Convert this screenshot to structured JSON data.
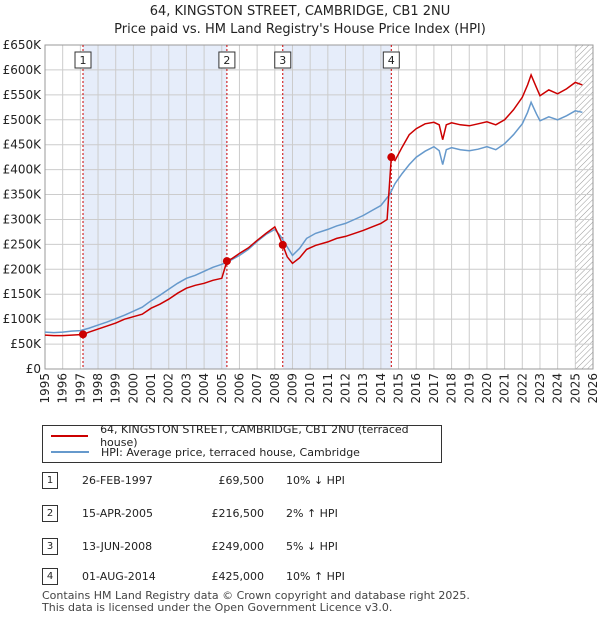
{
  "title_line1": "64, KINGSTON STREET, CAMBRIDGE, CB1 2NU",
  "title_line2": "Price paid vs. HM Land Registry's House Price Index (HPI)",
  "colors": {
    "property": "#cc0000",
    "hpi": "#6699cc",
    "shade": "#e6edfa",
    "grid": "#cccccc",
    "marker": "#cc0000"
  },
  "chart_data": {
    "type": "line",
    "title": "Price paid vs. HM Land Registry's House Price Index (HPI)",
    "xlabel": "",
    "ylabel": "",
    "xlim": [
      1995,
      2026
    ],
    "ylim": [
      0,
      650000
    ],
    "x_ticks": [
      "1995",
      "1996",
      "1997",
      "1998",
      "1999",
      "2000",
      "2001",
      "2002",
      "2003",
      "2004",
      "2005",
      "2006",
      "2007",
      "2008",
      "2009",
      "2010",
      "2011",
      "2012",
      "2013",
      "2014",
      "2015",
      "2016",
      "2017",
      "2018",
      "2019",
      "2020",
      "2021",
      "2022",
      "2023",
      "2024",
      "2025",
      "2026"
    ],
    "y_ticks": [
      {
        "v": 0,
        "label": "£0"
      },
      {
        "v": 50000,
        "label": "£50K"
      },
      {
        "v": 100000,
        "label": "£100K"
      },
      {
        "v": 150000,
        "label": "£150K"
      },
      {
        "v": 200000,
        "label": "£200K"
      },
      {
        "v": 250000,
        "label": "£250K"
      },
      {
        "v": 300000,
        "label": "£300K"
      },
      {
        "v": 350000,
        "label": "£350K"
      },
      {
        "v": 400000,
        "label": "£400K"
      },
      {
        "v": 450000,
        "label": "£450K"
      },
      {
        "v": 500000,
        "label": "£500K"
      },
      {
        "v": 550000,
        "label": "£550K"
      },
      {
        "v": 600000,
        "label": "£600K"
      },
      {
        "v": 650000,
        "label": "£650K"
      }
    ],
    "series": [
      {
        "name": "64, KINGSTON STREET, CAMBRIDGE, CB1 2NU (terraced house)",
        "color": "#cc0000",
        "points": [
          [
            1995.0,
            68000
          ],
          [
            1995.5,
            67000
          ],
          [
            1996.0,
            67000
          ],
          [
            1996.5,
            68000
          ],
          [
            1997.0,
            69000
          ],
          [
            1997.15,
            69500
          ],
          [
            1997.5,
            74000
          ],
          [
            1998.0,
            80000
          ],
          [
            1998.5,
            86000
          ],
          [
            1999.0,
            92000
          ],
          [
            1999.5,
            100000
          ],
          [
            2000.0,
            105000
          ],
          [
            2000.5,
            110000
          ],
          [
            2001.0,
            122000
          ],
          [
            2001.5,
            130000
          ],
          [
            2002.0,
            140000
          ],
          [
            2002.5,
            152000
          ],
          [
            2003.0,
            162000
          ],
          [
            2003.5,
            168000
          ],
          [
            2004.0,
            172000
          ],
          [
            2004.5,
            178000
          ],
          [
            2005.0,
            182000
          ],
          [
            2005.29,
            216500
          ],
          [
            2005.6,
            222000
          ],
          [
            2006.0,
            232000
          ],
          [
            2006.5,
            243000
          ],
          [
            2007.0,
            258000
          ],
          [
            2007.5,
            272000
          ],
          [
            2008.0,
            285000
          ],
          [
            2008.2,
            270000
          ],
          [
            2008.45,
            249000
          ],
          [
            2008.7,
            225000
          ],
          [
            2009.0,
            212000
          ],
          [
            2009.4,
            223000
          ],
          [
            2009.8,
            240000
          ],
          [
            2010.3,
            248000
          ],
          [
            2011.0,
            255000
          ],
          [
            2011.5,
            262000
          ],
          [
            2012.0,
            266000
          ],
          [
            2012.5,
            272000
          ],
          [
            2013.0,
            278000
          ],
          [
            2013.5,
            285000
          ],
          [
            2014.0,
            292000
          ],
          [
            2014.35,
            300000
          ],
          [
            2014.59,
            425000
          ],
          [
            2014.8,
            418000
          ],
          [
            2015.2,
            445000
          ],
          [
            2015.6,
            470000
          ],
          [
            2016.0,
            482000
          ],
          [
            2016.5,
            492000
          ],
          [
            2017.0,
            495000
          ],
          [
            2017.3,
            490000
          ],
          [
            2017.5,
            460000
          ],
          [
            2017.7,
            490000
          ],
          [
            2018.0,
            494000
          ],
          [
            2018.5,
            490000
          ],
          [
            2019.0,
            488000
          ],
          [
            2019.5,
            492000
          ],
          [
            2020.0,
            496000
          ],
          [
            2020.5,
            490000
          ],
          [
            2021.0,
            500000
          ],
          [
            2021.5,
            520000
          ],
          [
            2022.0,
            545000
          ],
          [
            2022.3,
            570000
          ],
          [
            2022.5,
            590000
          ],
          [
            2022.8,
            565000
          ],
          [
            2023.0,
            548000
          ],
          [
            2023.5,
            560000
          ],
          [
            2024.0,
            552000
          ],
          [
            2024.5,
            562000
          ],
          [
            2025.0,
            575000
          ],
          [
            2025.4,
            570000
          ]
        ]
      },
      {
        "name": "HPI: Average price, terraced house, Cambridge",
        "color": "#6699cc",
        "points": [
          [
            1995.0,
            74000
          ],
          [
            1995.5,
            73000
          ],
          [
            1996.0,
            74000
          ],
          [
            1996.5,
            76000
          ],
          [
            1997.0,
            77000
          ],
          [
            1997.5,
            82000
          ],
          [
            1998.0,
            88000
          ],
          [
            1998.5,
            94000
          ],
          [
            1999.0,
            101000
          ],
          [
            1999.5,
            108000
          ],
          [
            2000.0,
            116000
          ],
          [
            2000.5,
            124000
          ],
          [
            2001.0,
            137000
          ],
          [
            2001.5,
            148000
          ],
          [
            2002.0,
            160000
          ],
          [
            2002.5,
            172000
          ],
          [
            2003.0,
            182000
          ],
          [
            2003.5,
            188000
          ],
          [
            2004.0,
            196000
          ],
          [
            2004.5,
            204000
          ],
          [
            2005.0,
            210000
          ],
          [
            2005.5,
            218000
          ],
          [
            2006.0,
            228000
          ],
          [
            2006.5,
            240000
          ],
          [
            2007.0,
            256000
          ],
          [
            2007.5,
            270000
          ],
          [
            2008.0,
            280000
          ],
          [
            2008.3,
            268000
          ],
          [
            2008.7,
            245000
          ],
          [
            2009.0,
            228000
          ],
          [
            2009.4,
            242000
          ],
          [
            2009.8,
            262000
          ],
          [
            2010.3,
            272000
          ],
          [
            2011.0,
            280000
          ],
          [
            2011.5,
            287000
          ],
          [
            2012.0,
            292000
          ],
          [
            2012.5,
            300000
          ],
          [
            2013.0,
            308000
          ],
          [
            2013.5,
            318000
          ],
          [
            2014.0,
            328000
          ],
          [
            2014.5,
            350000
          ],
          [
            2014.8,
            372000
          ],
          [
            2015.2,
            392000
          ],
          [
            2015.6,
            410000
          ],
          [
            2016.0,
            425000
          ],
          [
            2016.5,
            437000
          ],
          [
            2017.0,
            446000
          ],
          [
            2017.3,
            438000
          ],
          [
            2017.5,
            410000
          ],
          [
            2017.7,
            440000
          ],
          [
            2018.0,
            444000
          ],
          [
            2018.5,
            440000
          ],
          [
            2019.0,
            438000
          ],
          [
            2019.5,
            441000
          ],
          [
            2020.0,
            446000
          ],
          [
            2020.5,
            440000
          ],
          [
            2021.0,
            452000
          ],
          [
            2021.5,
            470000
          ],
          [
            2022.0,
            492000
          ],
          [
            2022.3,
            515000
          ],
          [
            2022.5,
            535000
          ],
          [
            2022.8,
            512000
          ],
          [
            2023.0,
            498000
          ],
          [
            2023.5,
            506000
          ],
          [
            2024.0,
            500000
          ],
          [
            2024.5,
            508000
          ],
          [
            2025.0,
            518000
          ],
          [
            2025.4,
            515000
          ]
        ]
      }
    ],
    "shaded_ranges": [
      [
        1997.15,
        2005.29
      ],
      [
        2008.45,
        2014.59
      ]
    ],
    "hatched_range": [
      2025.0,
      2026.0
    ],
    "markers": [
      {
        "id": "1",
        "x": 1997.15,
        "y": 69500
      },
      {
        "id": "2",
        "x": 2005.29,
        "y": 216500
      },
      {
        "id": "3",
        "x": 2008.45,
        "y": 249000
      },
      {
        "id": "4",
        "x": 2014.59,
        "y": 425000
      }
    ]
  },
  "legend": {
    "property_label": "64, KINGSTON STREET, CAMBRIDGE, CB1 2NU (terraced house)",
    "hpi_label": "HPI: Average price, terraced house, Cambridge"
  },
  "transactions": [
    {
      "num": "1",
      "date": "26-FEB-1997",
      "price": "£69,500",
      "hpi": "10% ↓ HPI"
    },
    {
      "num": "2",
      "date": "15-APR-2005",
      "price": "£216,500",
      "hpi": "2% ↑ HPI"
    },
    {
      "num": "3",
      "date": "13-JUN-2008",
      "price": "£249,000",
      "hpi": "5% ↓ HPI"
    },
    {
      "num": "4",
      "date": "01-AUG-2014",
      "price": "£425,000",
      "hpi": "10% ↑ HPI"
    }
  ],
  "footer": {
    "line1": "Contains HM Land Registry data © Crown copyright and database right 2025.",
    "line2": "This data is licensed under the Open Government Licence v3.0."
  }
}
